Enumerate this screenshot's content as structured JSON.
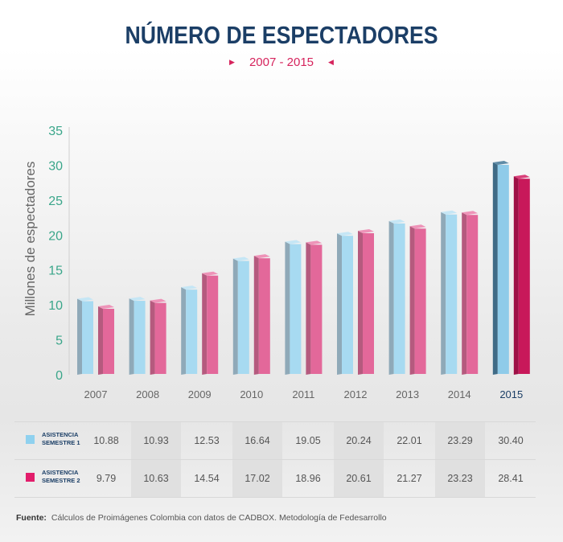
{
  "title": "NÚMERO DE ESPECTADORES",
  "subtitle": "2007 - 2015",
  "chart_data": {
    "type": "bar",
    "title": "NÚMERO DE ESPECTADORES",
    "subtitle": "2007 - 2015",
    "ylabel": "Millones de espectadores",
    "xlabel": "",
    "ylim": [
      0,
      35
    ],
    "yticks": [
      "0",
      "5",
      "10",
      "15",
      "20",
      "25",
      "30",
      "35"
    ],
    "categories": [
      "2007",
      "2008",
      "2009",
      "2010",
      "2011",
      "2012",
      "2013",
      "2014",
      "2015"
    ],
    "series": [
      {
        "name": "ASISTENCIA SEMESTRE 1",
        "values": [
          10.88,
          10.93,
          12.53,
          16.64,
          19.05,
          20.24,
          22.01,
          23.29,
          30.4
        ]
      },
      {
        "name": "ASISTENCIA SEMESTRE 2",
        "values": [
          9.79,
          10.63,
          14.54,
          17.02,
          18.96,
          20.61,
          21.27,
          23.23,
          28.41
        ]
      }
    ]
  },
  "table": {
    "rows": [
      {
        "label_line1": "ASISTENCIA",
        "label_line2": "SEMESTRE 1",
        "values": [
          "10.88",
          "10.93",
          "12.53",
          "16.64",
          "19.05",
          "20.24",
          "22.01",
          "23.29",
          "30.40"
        ]
      },
      {
        "label_line1": "ASISTENCIA",
        "label_line2": "SEMESTRE 2",
        "values": [
          "9.79",
          "10.63",
          "14.54",
          "17.02",
          "18.96",
          "20.61",
          "21.27",
          "23.23",
          "28.41"
        ]
      }
    ]
  },
  "source": {
    "label": "Fuente:",
    "text": "Cálculos de Proimágenes Colombia con datos de CADBOX. Metodología de Fedesarrollo"
  },
  "colors": {
    "title": "#1b3e66",
    "accent": "#d6245d",
    "tick": "#3aa68a",
    "s1_front": "#a7daf1",
    "s1_side": "#8fa9b8",
    "s1_top": "#c5e6f5",
    "s2_front": "#e3689a",
    "s2_side": "#b55a7e",
    "s2_top": "#ee93b8",
    "s1_highlight_front": "#8fcbe9",
    "s1_highlight_side": "#3f6b86",
    "s2_highlight_front": "#c8185a",
    "s2_highlight_side": "#9e1046",
    "legend1": "#8fd1ef",
    "legend2": "#e21d6b"
  }
}
